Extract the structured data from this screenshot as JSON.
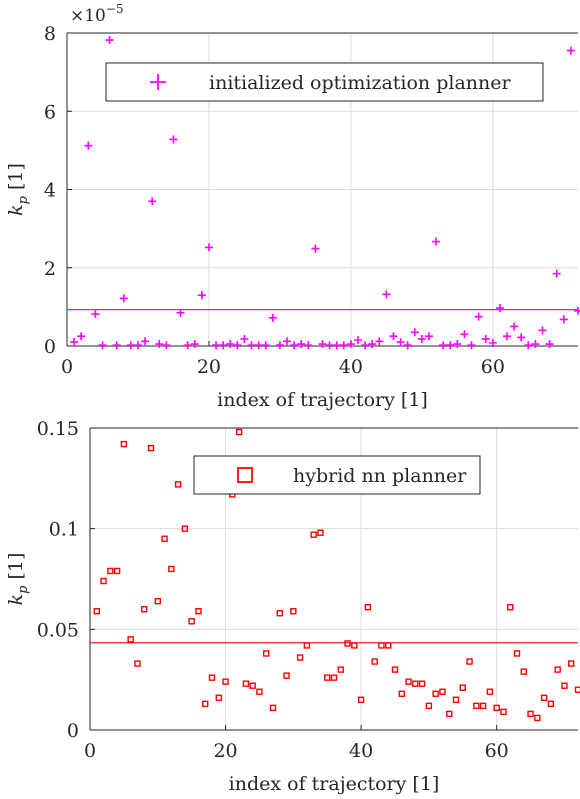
{
  "chart_data": [
    {
      "type": "scatter",
      "xlabel": "index of trajectory [1]",
      "ylabel_main": "k",
      "ylabel_sub": "p",
      "ylabel_unit": " [1]",
      "exponent_label": "×10",
      "exponent_power": "−5",
      "xlim": [
        0,
        72
      ],
      "ylim": [
        0,
        8
      ],
      "xticks": [
        0,
        20,
        40,
        60
      ],
      "yticks": [
        0,
        2,
        4,
        6,
        8
      ],
      "xtick_labels": [
        "0",
        "20",
        "40",
        "60"
      ],
      "ytick_labels": [
        "0",
        "2",
        "4",
        "6",
        "8"
      ],
      "grid": true,
      "legend_position": "top-right",
      "marker": "plus",
      "color": "#ff00ff",
      "mean_line": 0.93,
      "series": [
        {
          "name": "initialized optimization planner",
          "x": [
            1,
            2,
            3,
            4,
            5,
            6,
            7,
            8,
            9,
            10,
            11,
            12,
            13,
            14,
            15,
            16,
            17,
            18,
            19,
            20,
            21,
            22,
            23,
            24,
            25,
            26,
            27,
            28,
            29,
            30,
            31,
            32,
            33,
            34,
            35,
            36,
            37,
            38,
            39,
            40,
            41,
            42,
            43,
            44,
            45,
            46,
            47,
            48,
            49,
            50,
            51,
            52,
            53,
            54,
            55,
            56,
            57,
            58,
            59,
            60,
            61,
            62,
            63,
            64,
            65,
            66,
            67,
            68,
            69,
            70,
            71,
            72
          ],
          "y": [
            0.1,
            0.25,
            5.12,
            0.82,
            0.02,
            7.82,
            0.02,
            1.22,
            0.02,
            0.02,
            0.12,
            3.7,
            0.05,
            0.02,
            5.28,
            0.85,
            0.02,
            0.05,
            1.3,
            2.52,
            0.02,
            0.02,
            0.05,
            0.02,
            0.18,
            0.02,
            0.02,
            0.02,
            0.72,
            0.02,
            0.12,
            0.02,
            0.05,
            0.02,
            2.49,
            0.05,
            0.02,
            0.02,
            0.02,
            0.05,
            0.15,
            0.02,
            0.05,
            0.12,
            1.32,
            0.25,
            0.1,
            0.02,
            0.35,
            0.18,
            0.25,
            2.67,
            0.02,
            0.02,
            0.05,
            0.3,
            0.02,
            0.75,
            0.18,
            0.08,
            0.97,
            0.25,
            0.5,
            0.22,
            0.02,
            0.05,
            0.4,
            0.05,
            1.85,
            0.68,
            7.55,
            0.9
          ]
        }
      ]
    },
    {
      "type": "scatter",
      "xlabel": "index of trajectory [1]",
      "ylabel_main": "k",
      "ylabel_sub": "p",
      "ylabel_unit": " [1]",
      "xlim": [
        0,
        72
      ],
      "ylim": [
        0,
        0.15
      ],
      "xticks": [
        0,
        20,
        40,
        60
      ],
      "yticks": [
        0,
        0.05,
        0.1,
        0.15
      ],
      "xtick_labels": [
        "0",
        "20",
        "40",
        "60"
      ],
      "ytick_labels": [
        "0",
        "0.05",
        "0.1",
        "0.15"
      ],
      "grid": true,
      "legend_position": "top-right",
      "marker": "square",
      "color": "#ff0000",
      "mean_line": 0.0433,
      "series": [
        {
          "name": "hybrid nn planner",
          "x": [
            1,
            2,
            3,
            4,
            5,
            6,
            7,
            8,
            9,
            10,
            11,
            12,
            13,
            14,
            15,
            16,
            17,
            18,
            19,
            20,
            21,
            22,
            23,
            24,
            25,
            26,
            27,
            28,
            29,
            30,
            31,
            32,
            33,
            34,
            35,
            36,
            37,
            38,
            39,
            40,
            41,
            42,
            43,
            44,
            45,
            46,
            47,
            48,
            49,
            50,
            51,
            52,
            53,
            54,
            55,
            56,
            57,
            58,
            59,
            60,
            61,
            62,
            63,
            64,
            65,
            66,
            67,
            68,
            69,
            70,
            71,
            72
          ],
          "y": [
            0.059,
            0.074,
            0.079,
            0.079,
            0.142,
            0.045,
            0.033,
            0.06,
            0.14,
            0.064,
            0.095,
            0.08,
            0.122,
            0.1,
            0.054,
            0.059,
            0.013,
            0.026,
            0.016,
            0.024,
            0.117,
            0.148,
            0.023,
            0.022,
            0.019,
            0.038,
            0.011,
            0.058,
            0.027,
            0.059,
            0.036,
            0.042,
            0.097,
            0.098,
            0.026,
            0.026,
            0.03,
            0.043,
            0.042,
            0.015,
            0.061,
            0.034,
            0.042,
            0.042,
            0.03,
            0.018,
            0.024,
            0.023,
            0.023,
            0.012,
            0.018,
            0.019,
            0.008,
            0.015,
            0.021,
            0.034,
            0.012,
            0.012,
            0.019,
            0.011,
            0.009,
            0.061,
            0.038,
            0.029,
            0.008,
            0.006,
            0.016,
            0.013,
            0.03,
            0.022,
            0.033,
            0.02
          ]
        }
      ]
    }
  ]
}
